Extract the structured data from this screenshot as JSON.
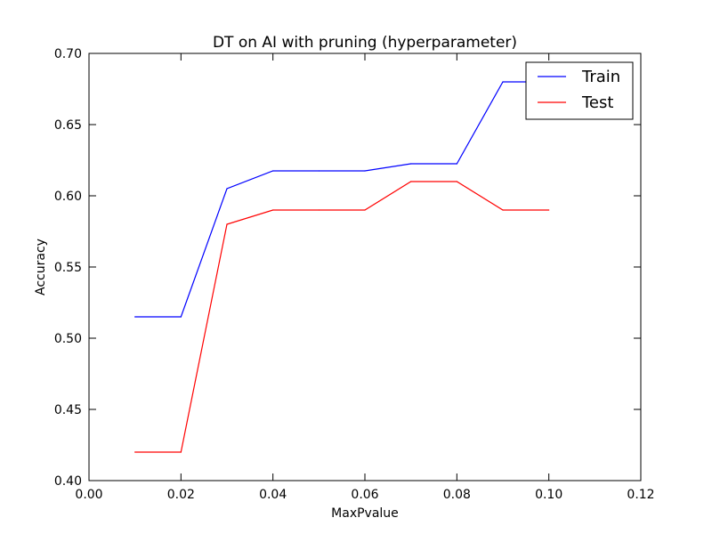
{
  "chart_data": {
    "type": "line",
    "title": "DT on AI with pruning (hyperparameter)",
    "xlabel": "MaxPvalue",
    "ylabel": "Accuracy",
    "xlim": [
      0.0,
      0.12
    ],
    "ylim": [
      0.4,
      0.7
    ],
    "xticks": [
      0.0,
      0.02,
      0.04,
      0.06,
      0.08,
      0.1,
      0.12
    ],
    "xtick_labels": [
      "0.00",
      "0.02",
      "0.04",
      "0.06",
      "0.08",
      "0.10",
      "0.12"
    ],
    "yticks": [
      0.4,
      0.45,
      0.5,
      0.55,
      0.6,
      0.65,
      0.7
    ],
    "ytick_labels": [
      "0.40",
      "0.45",
      "0.50",
      "0.55",
      "0.60",
      "0.65",
      "0.70"
    ],
    "grid": false,
    "legend_position": "top-right",
    "x": [
      0.01,
      0.02,
      0.03,
      0.04,
      0.05,
      0.06,
      0.07,
      0.08,
      0.09,
      0.1
    ],
    "series": [
      {
        "name": "Train",
        "color": "#0000ff",
        "values": [
          0.515,
          0.515,
          0.605,
          0.6175,
          0.6175,
          0.6175,
          0.6225,
          0.6225,
          0.68,
          0.68
        ]
      },
      {
        "name": "Test",
        "color": "#ff0000",
        "values": [
          0.42,
          0.42,
          0.58,
          0.59,
          0.59,
          0.59,
          0.61,
          0.61,
          0.59,
          0.59
        ]
      }
    ]
  }
}
